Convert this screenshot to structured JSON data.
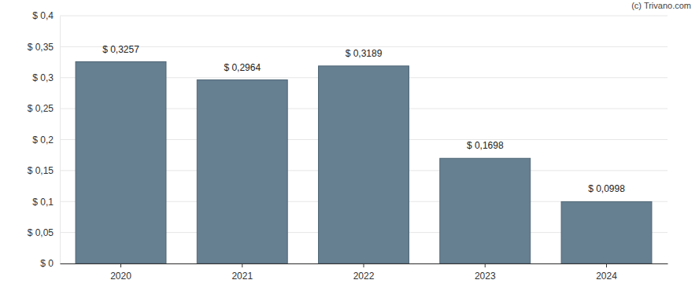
{
  "chart_data": {
    "type": "bar",
    "annotations": [
      "(c) Trivano.com"
    ],
    "categories": [
      "2020",
      "2021",
      "2022",
      "2023",
      "2024"
    ],
    "values": [
      0.3257,
      0.2964,
      0.3189,
      0.1698,
      0.0998
    ],
    "value_labels": [
      "$ 0,3257",
      "$ 0,2964",
      "$ 0,3189",
      "$ 0,1698",
      "$ 0,0998"
    ],
    "color": "#667f91",
    "ylim": [
      0,
      0.4
    ],
    "yticks": [
      {
        "value": 0,
        "label": "$ 0"
      },
      {
        "value": 0.05,
        "label": "$ 0,05"
      },
      {
        "value": 0.1,
        "label": "$ 0,1"
      },
      {
        "value": 0.15,
        "label": "$ 0,15"
      },
      {
        "value": 0.2,
        "label": "$ 0,2"
      },
      {
        "value": 0.25,
        "label": "$ 0,25"
      },
      {
        "value": 0.3,
        "label": "$ 0,3"
      },
      {
        "value": 0.35,
        "label": "$ 0,35"
      },
      {
        "value": 0.4,
        "label": "$ 0,4"
      }
    ],
    "grid": true,
    "data_labels": true
  }
}
